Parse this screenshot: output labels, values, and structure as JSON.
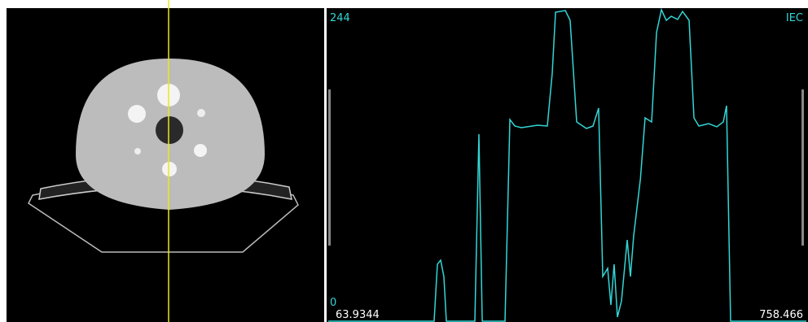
{
  "chart_data": {
    "type": "line",
    "corner_label": "IEC",
    "color": "#33d6d6",
    "x": [
      63.9344,
      217.7,
      222.5,
      227.2,
      231.9,
      235.5,
      276.9,
      282.8,
      287.6,
      320.7,
      327.8,
      335.0,
      344.4,
      368.0,
      382.2,
      389.3,
      394.1,
      408.3,
      415.3,
      424.8,
      439.0,
      448.5,
      456.7,
      462.7,
      469.8,
      474.5,
      479.2,
      484.0,
      489.9,
      498.2,
      502.9,
      507.6,
      517.4,
      524.2,
      533.7,
      540.8,
      547.9,
      555.0,
      562.1,
      571.5,
      578.6,
      588.1,
      595.2,
      602.3,
      616.5,
      628.3,
      637.8,
      642.5,
      648.4,
      758.466
    ],
    "values": [
      0,
      0,
      44.6,
      47.8,
      35.0,
      0,
      0,
      146.5,
      0,
      0,
      158.0,
      152.9,
      151.6,
      153.5,
      152.9,
      194.3,
      242.1,
      243.4,
      235.7,
      156.1,
      151.0,
      152.9,
      166.9,
      35.0,
      41.4,
      12.7,
      44.6,
      3.2,
      15.9,
      63.7,
      35.0,
      66.9,
      111.5,
      159.3,
      156.1,
      226.2,
      244,
      235.7,
      238.9,
      236.4,
      242.7,
      235.7,
      159.3,
      152.9,
      154.8,
      152.3,
      156.1,
      168.8,
      0,
      0
    ],
    "xlim": [
      63.9344,
      758.466
    ],
    "xticks": [
      63.9344,
      758.466
    ],
    "ylim": [
      0,
      244
    ],
    "yticks": [
      0,
      244
    ]
  }
}
